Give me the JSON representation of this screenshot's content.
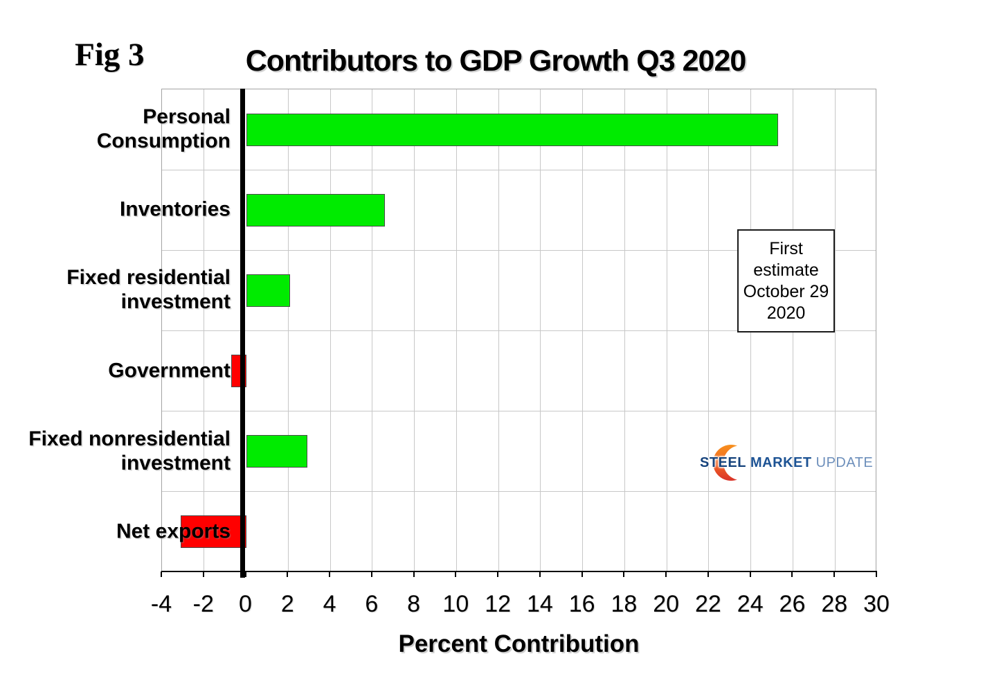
{
  "fig_label": "Fig 3",
  "title": "Contributors to GDP Growth Q3 2020",
  "annotation": {
    "lines": [
      "First",
      "estimate",
      "October 29",
      "2020"
    ]
  },
  "logo": {
    "steel": "STEEL",
    "market": "MARKET",
    "update": "UPDATE",
    "crescent_top_color": "#F89C1C",
    "crescent_mid_color": "#F26522",
    "crescent_bottom_color": "#D2262C"
  },
  "chart_data": {
    "type": "bar",
    "orientation": "horizontal",
    "title": "Contributors to GDP Growth Q3 2020",
    "xlabel": "Percent Contribution",
    "categories": [
      "Personal\nConsumption",
      "Inventories",
      "Fixed residential\ninvestment",
      "Government",
      "Fixed nonresidential\ninvestment",
      "Net exports"
    ],
    "values": [
      25.3,
      6.6,
      2.1,
      -0.7,
      2.9,
      -3.1
    ],
    "xlim": [
      -4,
      30
    ],
    "xticks": [
      -4,
      -2,
      0,
      2,
      4,
      6,
      8,
      10,
      12,
      14,
      16,
      18,
      20,
      22,
      24,
      26,
      28,
      30
    ],
    "grid": true,
    "gridline_step": 2,
    "positive_color": "#00EB00",
    "negative_color": "#FF0000",
    "bar_border_color": "#4a4a4a",
    "gridline_color": "#c7c7c7",
    "legend": "none"
  }
}
